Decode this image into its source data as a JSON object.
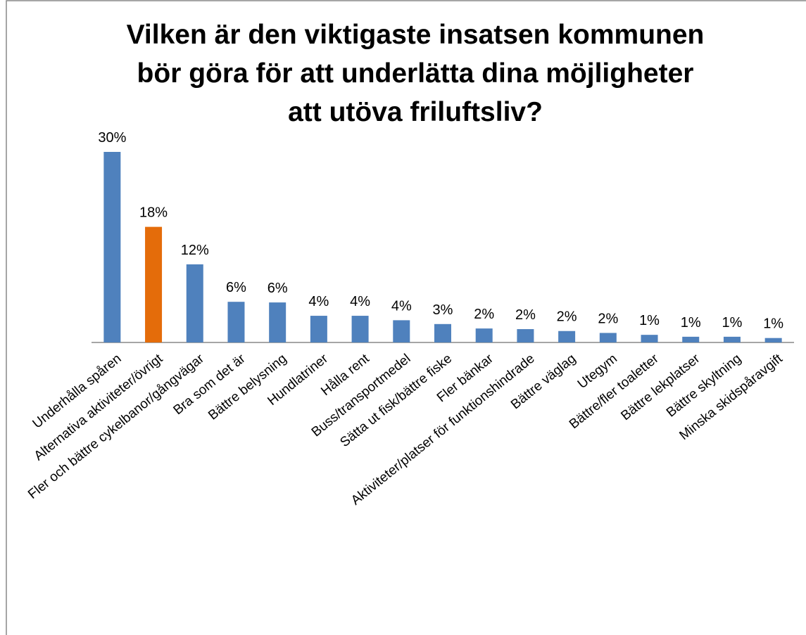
{
  "chart_data": {
    "type": "bar",
    "title": [
      "Vilken är den viktigaste insatsen kommunen",
      "bör göra för att underlätta dina möjligheter",
      "att utöva friluftsliv?"
    ],
    "categories": [
      "Underhålla spåren",
      "Alternativa aktiviteter/övrigt",
      "Fler och bättre cykelbanor/gångvägar",
      "Bra som det är",
      "Bättre belysning",
      "Hundlatriner",
      "Hålla rent",
      "Buss/transportmedel",
      "Sätta ut fisk/bättre fiske",
      "Fler bänkar",
      "Aktiviteter/platser för funktionshindrade",
      "Bättre väglag",
      "Utegym",
      "Bättre/fler toaletter",
      "Bättre lekplatser",
      "Bättre skyltning",
      "Minska skidspåravgift"
    ],
    "values": [
      30,
      18.2,
      12.3,
      6.4,
      6.3,
      4.2,
      4.2,
      3.5,
      2.9,
      2.2,
      2.1,
      1.8,
      1.5,
      1.2,
      0.9,
      0.9,
      0.7
    ],
    "value_labels": [
      "30%",
      "18%",
      "12%",
      "6%",
      "6%",
      "4%",
      "4%",
      "4%",
      "3%",
      "2%",
      "2%",
      "2%",
      "2%",
      "1%",
      "1%",
      "1%",
      "1%"
    ],
    "colors": [
      "#4f81bd",
      "#e46c0a",
      "#4f81bd",
      "#4f81bd",
      "#4f81bd",
      "#4f81bd",
      "#4f81bd",
      "#4f81bd",
      "#4f81bd",
      "#4f81bd",
      "#4f81bd",
      "#4f81bd",
      "#4f81bd",
      "#4f81bd",
      "#4f81bd",
      "#4f81bd",
      "#4f81bd"
    ]
  }
}
